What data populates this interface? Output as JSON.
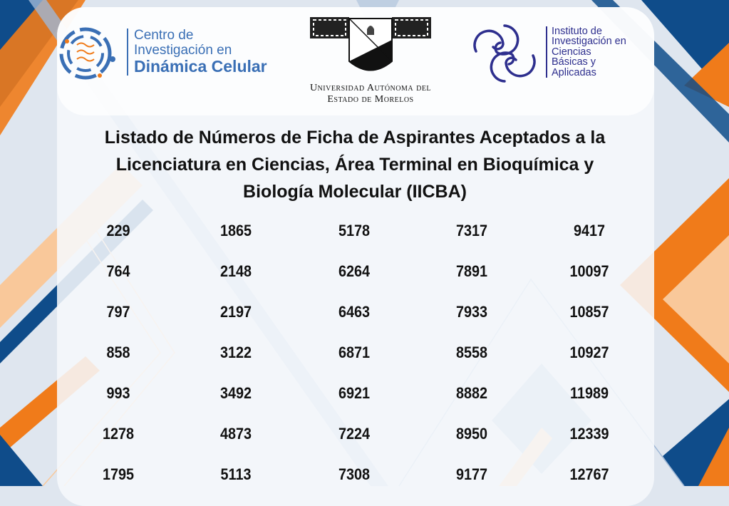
{
  "header": {
    "left_logo": {
      "line1": "Centro de",
      "line2": "Investigación en",
      "line3": "Dinámica Celular"
    },
    "center_logo": {
      "line1": "Universidad Autónoma del",
      "line2": "Estado de Morelos"
    },
    "right_logo": {
      "line1": "Instituto de",
      "line2": "Investigación en",
      "line3": "Ciencias",
      "line4": "Básicas y",
      "line5": "Aplicadas"
    }
  },
  "title": {
    "line1": "Listado de Números de Ficha de Aspirantes Aceptados a la",
    "line2": "Licenciatura en Ciencias, Área Terminal en Bioquímica y",
    "line3": "Biología Molecular (IICBA)"
  },
  "columns": [
    [
      "229",
      "764",
      "797",
      "858",
      "993",
      "1278",
      "1795"
    ],
    [
      "1865",
      "2148",
      "2197",
      "3122",
      "3492",
      "4873",
      "5113"
    ],
    [
      "5178",
      "6264",
      "6463",
      "6871",
      "6921",
      "7224",
      "7308"
    ],
    [
      "7317",
      "7891",
      "7933",
      "8558",
      "8882",
      "8950",
      "9177"
    ],
    [
      "9417",
      "10097",
      "10857",
      "10927",
      "11989",
      "12339",
      "12767"
    ]
  ],
  "colors": {
    "navy": "#0f4c8a",
    "orange": "#f07b1a",
    "light_blue": "#9fb8d6",
    "peach": "#f9c89a",
    "text_blue": "#3a6fb5",
    "text_indigo": "#2e2f8e"
  }
}
